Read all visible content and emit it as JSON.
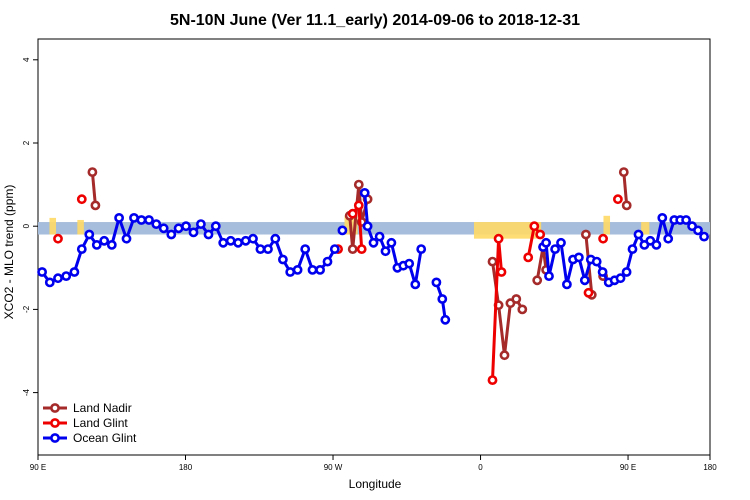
{
  "chart_data": {
    "type": "line",
    "title": "5N-10N June (Ver 11.1_early)   2014-09-06 to 2018-12-31",
    "xlabel": "Longitude",
    "ylabel": "XCO2 - MLO trend (ppm)",
    "xlim": [
      90,
      450
    ],
    "ylim": [
      -5.5,
      4.5
    ],
    "x_ticks": [
      {
        "value": 90,
        "label": "90 E"
      },
      {
        "value": 180,
        "label": "180"
      },
      {
        "value": 270,
        "label": "90 W"
      },
      {
        "value": 360,
        "label": "0"
      },
      {
        "value": 450,
        "label": "180"
      }
    ],
    "x_ticks_extra": [
      {
        "value": 450,
        "label": "90 E"
      }
    ],
    "y_ticks": [
      -4,
      -2,
      0,
      2,
      4
    ],
    "band": {
      "ymin": -0.2,
      "ymax": 0.1,
      "color": "#a6bddb"
    },
    "land_regions": [
      {
        "x": [
          97,
          101
        ],
        "ymin": -0.2,
        "ymax": 0.2
      },
      {
        "x": [
          114,
          118
        ],
        "ymin": -0.2,
        "ymax": 0.15
      },
      {
        "x": [
          277,
          285
        ],
        "ymin": -0.2,
        "ymax": 0.25
      },
      {
        "x": [
          356,
          397
        ],
        "ymin": -0.3,
        "ymax": 0.1
      },
      {
        "x": [
          435,
          439
        ],
        "ymin": -0.2,
        "ymax": 0.25
      },
      {
        "x": [
          458,
          463
        ],
        "ymin": -0.2,
        "ymax": 0.1
      }
    ],
    "land_color": "#ffd966",
    "legend": {
      "position": "bottom-left"
    },
    "series": [
      {
        "name": "Land Nadir",
        "color": "#a52a2a",
        "segments": [
          [
            [
              123.2,
              1.3
            ],
            [
              125.0,
              0.5
            ]
          ],
          [
            [
              280.2,
              0.25
            ],
            [
              282.0,
              -0.55
            ],
            [
              285.7,
              1.0
            ],
            [
              287.5,
              0.1
            ],
            [
              291.1,
              0.65
            ]
          ],
          [
            [
              367.3,
              -0.85
            ],
            [
              371.0,
              -1.9
            ],
            [
              374.6,
              -3.1
            ],
            [
              378.2,
              -1.85
            ],
            [
              381.8,
              -1.75
            ],
            [
              385.5,
              -2.0
            ]
          ],
          [
            [
              394.6,
              -1.3
            ],
            [
              398.2,
              -0.5
            ],
            [
              400.0,
              -1.05
            ]
          ],
          [
            [
              424.3,
              -0.2
            ],
            [
              427.9,
              -1.65
            ]
          ],
          [
            [
              434.8,
              -1.2
            ]
          ],
          [
            [
              447.4,
              1.3
            ],
            [
              449.2,
              0.5
            ]
          ]
        ]
      },
      {
        "name": "Land Glint",
        "color": "#ee0000",
        "segments": [
          [
            [
              102.2,
              -0.3
            ]
          ],
          [
            [
              116.7,
              0.65
            ]
          ],
          [
            [
              273.1,
              -0.55
            ]
          ],
          [
            [
              282.0,
              0.3
            ],
            [
              285.7,
              0.5
            ],
            [
              287.5,
              -0.55
            ]
          ],
          [
            [
              367.3,
              -3.7
            ],
            [
              371.0,
              -0.3
            ],
            [
              372.8,
              -1.1
            ]
          ],
          [
            [
              389.1,
              -0.75
            ],
            [
              392.8,
              0.0
            ],
            [
              396.4,
              -0.2
            ]
          ],
          [
            [
              425.9,
              -1.6
            ]
          ],
          [
            [
              434.8,
              -0.3
            ]
          ],
          [
            [
              443.8,
              0.65
            ]
          ]
        ]
      },
      {
        "name": "Ocean Glint",
        "color": "#0000ee",
        "segments": [
          [
            [
              92.5,
              -1.1
            ],
            [
              97.2,
              -1.35
            ],
            [
              102.2,
              -1.25
            ],
            [
              107.2,
              -1.2
            ],
            [
              112.2,
              -1.1
            ],
            [
              116.7,
              -0.55
            ],
            [
              121.3,
              -0.2
            ],
            [
              125.9,
              -0.45
            ],
            [
              130.4,
              -0.35
            ],
            [
              135.0,
              -0.45
            ],
            [
              139.5,
              0.2
            ],
            [
              144.0,
              -0.3
            ],
            [
              148.6,
              0.2
            ],
            [
              153.1,
              0.15
            ],
            [
              157.7,
              0.15
            ],
            [
              162.2,
              0.05
            ],
            [
              166.7,
              -0.05
            ],
            [
              171.3,
              -0.2
            ],
            [
              175.8,
              -0.05
            ],
            [
              180.3,
              0.0
            ],
            [
              184.9,
              -0.15
            ],
            [
              189.4,
              0.05
            ],
            [
              194.0,
              -0.2
            ],
            [
              198.5,
              -0.0
            ],
            [
              203.0,
              -0.4
            ],
            [
              207.6,
              -0.35
            ],
            [
              212.1,
              -0.4
            ],
            [
              216.7,
              -0.35
            ],
            [
              221.2,
              -0.3
            ],
            [
              225.7,
              -0.55
            ],
            [
              230.3,
              -0.55
            ],
            [
              234.8,
              -0.3
            ],
            [
              239.4,
              -0.8
            ],
            [
              243.9,
              -1.1
            ],
            [
              248.4,
              -1.05
            ],
            [
              253.0,
              -0.55
            ],
            [
              257.5,
              -1.05
            ],
            [
              262.1,
              -1.05
            ],
            [
              266.6,
              -0.85
            ],
            [
              271.1,
              -0.55
            ]
          ],
          [
            [
              275.7,
              -0.1
            ]
          ],
          [
            [
              289.3,
              0.8
            ],
            [
              291.1,
              0.0
            ],
            [
              294.7,
              -0.4
            ],
            [
              298.4,
              -0.25
            ],
            [
              302.0,
              -0.6
            ],
            [
              305.6,
              -0.4
            ],
            [
              309.3,
              -1.0
            ],
            [
              312.9,
              -0.95
            ],
            [
              316.5,
              -0.9
            ],
            [
              320.2,
              -1.4
            ],
            [
              323.8,
              -0.55
            ]
          ],
          [
            [
              333.1,
              -1.35
            ],
            [
              336.7,
              -1.75
            ],
            [
              338.5,
              -2.25
            ]
          ],
          [
            [
              398.2,
              -0.5
            ],
            [
              400.0,
              -0.4
            ],
            [
              401.8,
              -1.2
            ],
            [
              405.5,
              -0.55
            ],
            [
              409.1,
              -0.4
            ],
            [
              412.7,
              -1.4
            ],
            [
              416.4,
              -0.8
            ],
            [
              420.0,
              -0.75
            ],
            [
              423.6,
              -1.3
            ],
            [
              427.3,
              -0.8
            ],
            [
              430.9,
              -0.85
            ],
            [
              434.5,
              -1.1
            ],
            [
              438.2,
              -1.35
            ],
            [
              441.8,
              -1.3
            ],
            [
              445.4,
              -1.25
            ],
            [
              449.1,
              -1.1
            ],
            [
              452.7,
              -0.55
            ],
            [
              456.4,
              -0.2
            ],
            [
              460.0,
              -0.45
            ],
            [
              463.6,
              -0.35
            ],
            [
              467.3,
              -0.45
            ],
            [
              470.9,
              0.2
            ],
            [
              474.5,
              -0.3
            ],
            [
              478.2,
              0.15
            ],
            [
              481.8,
              0.15
            ],
            [
              485.4,
              0.15
            ],
            [
              489.1,
              0.0
            ],
            [
              492.7,
              -0.1
            ],
            [
              496.4,
              -0.25
            ]
          ]
        ]
      }
    ]
  }
}
